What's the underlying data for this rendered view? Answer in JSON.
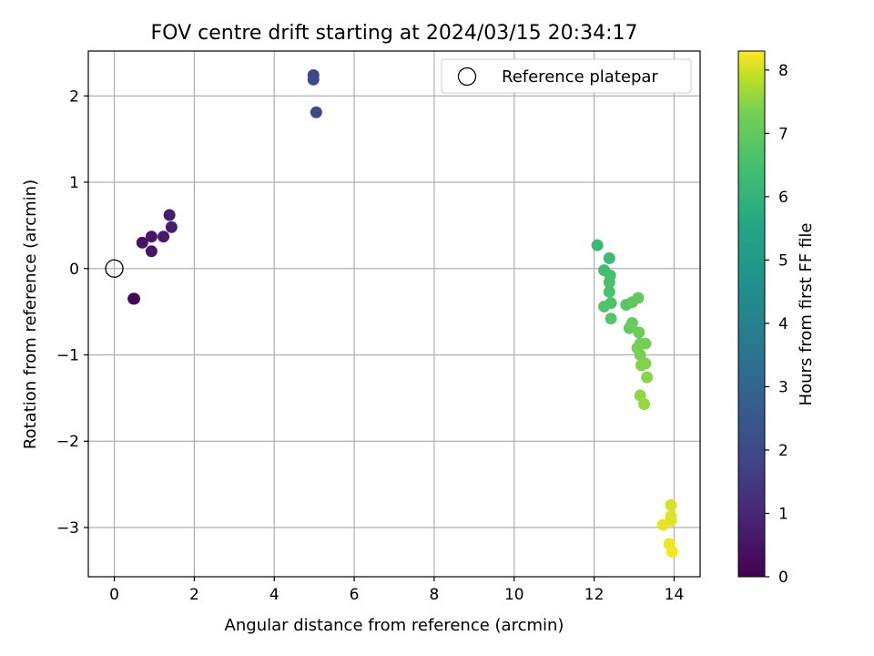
{
  "chart_data": {
    "type": "scatter",
    "title": "FOV centre drift starting at 2024/03/15 20:34:17",
    "xlabel": "Angular distance from reference (arcmin)",
    "ylabel": "Rotation from reference (arcmin)",
    "xlim": [
      -0.65,
      14.65
    ],
    "ylim": [
      -3.57,
      2.52
    ],
    "xticks": [
      0,
      2,
      4,
      6,
      8,
      10,
      12,
      14
    ],
    "yticks": [
      -3,
      -2,
      -1,
      0,
      1,
      2
    ],
    "xtick_labels": [
      "0",
      "2",
      "4",
      "6",
      "8",
      "10",
      "12",
      "14"
    ],
    "ytick_labels": [
      "−3",
      "−2",
      "−1",
      "0",
      "1",
      "2"
    ],
    "grid": true,
    "legend": {
      "position": "top-right",
      "entries": [
        "Reference platepar"
      ]
    },
    "reference_point": {
      "x": 0,
      "y": 0,
      "label": "Reference platepar"
    },
    "colorbar": {
      "label": "Hours from first FF file",
      "colormap": "viridis",
      "range": [
        0,
        8.3
      ],
      "ticks": [
        0,
        1,
        2,
        3,
        4,
        5,
        6,
        7,
        8
      ],
      "tick_labels": [
        "0",
        "1",
        "2",
        "3",
        "4",
        "5",
        "6",
        "7",
        "8"
      ]
    },
    "points": [
      {
        "x": 0.5,
        "y": -0.35,
        "t": 0.1
      },
      {
        "x": 0.48,
        "y": -0.35,
        "t": 0.15
      },
      {
        "x": 0.7,
        "y": 0.3,
        "t": 0.4
      },
      {
        "x": 0.93,
        "y": 0.37,
        "t": 0.5
      },
      {
        "x": 0.93,
        "y": 0.2,
        "t": 0.55
      },
      {
        "x": 1.23,
        "y": 0.37,
        "t": 0.65
      },
      {
        "x": 1.38,
        "y": 0.62,
        "t": 0.75
      },
      {
        "x": 1.43,
        "y": 0.48,
        "t": 0.8
      },
      {
        "x": 4.98,
        "y": 2.24,
        "t": 1.9
      },
      {
        "x": 4.98,
        "y": 2.19,
        "t": 1.95
      },
      {
        "x": 5.05,
        "y": 1.81,
        "t": 2.0
      },
      {
        "x": 12.08,
        "y": 0.27,
        "t": 6.2
      },
      {
        "x": 12.38,
        "y": 0.12,
        "t": 6.3
      },
      {
        "x": 12.25,
        "y": -0.02,
        "t": 6.4
      },
      {
        "x": 12.4,
        "y": -0.08,
        "t": 6.5
      },
      {
        "x": 12.38,
        "y": -0.16,
        "t": 6.55
      },
      {
        "x": 12.38,
        "y": -0.27,
        "t": 6.6
      },
      {
        "x": 12.42,
        "y": -0.4,
        "t": 6.65
      },
      {
        "x": 12.25,
        "y": -0.44,
        "t": 6.7
      },
      {
        "x": 12.42,
        "y": -0.58,
        "t": 6.75
      },
      {
        "x": 12.8,
        "y": -0.42,
        "t": 6.85
      },
      {
        "x": 12.95,
        "y": -0.39,
        "t": 6.9
      },
      {
        "x": 13.1,
        "y": -0.34,
        "t": 7.0
      },
      {
        "x": 12.95,
        "y": -0.63,
        "t": 7.05
      },
      {
        "x": 12.88,
        "y": -0.69,
        "t": 7.1
      },
      {
        "x": 13.12,
        "y": -0.74,
        "t": 7.15
      },
      {
        "x": 13.15,
        "y": -0.87,
        "t": 7.2
      },
      {
        "x": 13.28,
        "y": -0.87,
        "t": 7.25
      },
      {
        "x": 13.08,
        "y": -0.92,
        "t": 7.3
      },
      {
        "x": 13.15,
        "y": -1.0,
        "t": 7.35
      },
      {
        "x": 13.28,
        "y": -1.1,
        "t": 7.4
      },
      {
        "x": 13.18,
        "y": -1.12,
        "t": 7.45
      },
      {
        "x": 13.32,
        "y": -1.26,
        "t": 7.5
      },
      {
        "x": 13.15,
        "y": -1.47,
        "t": 7.55
      },
      {
        "x": 13.25,
        "y": -1.57,
        "t": 7.6
      },
      {
        "x": 13.92,
        "y": -2.74,
        "t": 8.05
      },
      {
        "x": 13.92,
        "y": -2.87,
        "t": 8.1
      },
      {
        "x": 13.92,
        "y": -2.92,
        "t": 8.12
      },
      {
        "x": 13.72,
        "y": -2.97,
        "t": 8.15
      },
      {
        "x": 13.88,
        "y": -3.19,
        "t": 8.2
      },
      {
        "x": 13.95,
        "y": -3.28,
        "t": 8.25
      }
    ]
  }
}
